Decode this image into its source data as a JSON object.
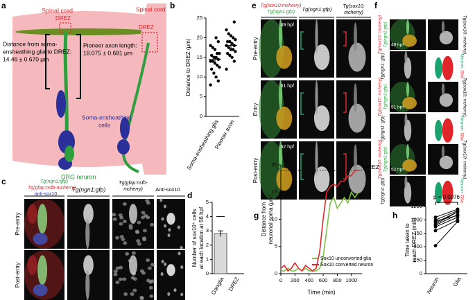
{
  "panels": {
    "a": {
      "label": "a",
      "spinal_cord": "Spinal cord",
      "drez": "DREZ",
      "distance_label": [
        "Distance from soma-",
        "ensheathing glia to DREZ:"
      ],
      "distance_value": "14.46 ± 0.670 μm",
      "axon_label": "Pioneer axon",
      "axon_label_2": "length:",
      "axon_value": "18.075 ± 0.681 μm",
      "soma_cells": [
        "Soma-ensheathing",
        "cells"
      ],
      "spinal_cord_2": "Spinal cord",
      "drez_2": "DREZ",
      "drg": "DRG neuron"
    },
    "c": {
      "label": "c",
      "merge_green": "Tg(ngn1:gfp)",
      "merge_red": "Tg(gfap:nsfb-mcherry)",
      "merge_blue": "anti-sox10",
      "col2": "Tg(ngn1:gfp)",
      "col3": [
        "Tg(gfap:nsfb-",
        "mcherry)"
      ],
      "col4": "Anti-sox10",
      "rows": [
        "Pre-entry",
        "Post-entry"
      ]
    },
    "e": {
      "label": "e",
      "merge_red": "Tg(sox10:mcherry)",
      "merge_green": "Tg(ngn1:gfp)",
      "col2": "Tg(ngn1:gfp)",
      "col3": [
        "Tg(sox10:",
        "mcherry)"
      ],
      "rows": [
        "Pre-entry",
        "Entry",
        "Post-entry"
      ],
      "times": [
        "49 hpf",
        "51 hpf",
        "52 hpf"
      ]
    },
    "f": {
      "label": "f",
      "merge_red": "Tg(sox10: mcherry)",
      "merge_green": "Tg(ngn1:gfp)",
      "sox_label": "Tg(sox10: mcherry)",
      "ngn_label": "Tg(ngn1: gfp)",
      "neuron": "Neuron",
      "glia": "Glia",
      "times": [
        "49 hpf",
        "51 hpf",
        "52 hpf"
      ]
    }
  },
  "chart_data": [
    {
      "type": "dot",
      "label": "b",
      "ylabel": "Distance to DREZ (μm)",
      "categories": [
        "Soma-ensheathing glia",
        "Pioneer axon"
      ],
      "groups": [
        [
          8,
          9,
          10,
          11,
          12,
          12.5,
          13,
          13.5,
          14,
          14,
          14.5,
          15,
          15,
          15.5,
          16,
          16,
          17,
          17.5,
          18,
          19,
          20
        ],
        [
          12,
          14,
          15,
          15.5,
          16,
          16.5,
          17,
          17,
          17.5,
          18,
          18,
          18.5,
          19,
          19,
          19.5,
          20,
          20.5,
          21,
          22,
          24
        ]
      ],
      "means": [
        14.46,
        18.075
      ],
      "errors": [
        0.67,
        0.681
      ],
      "color": "#000000",
      "ylim": [
        0,
        25
      ],
      "yticks": [
        0,
        5,
        10,
        15,
        20,
        25
      ]
    },
    {
      "type": "bar",
      "label": "d",
      "ylabel": [
        "Number of sox10⁺ cells",
        "at each location at 56 hpf"
      ],
      "categories": [
        "Ganglia",
        "DREZ"
      ],
      "values": [
        2.8,
        0
      ],
      "errors": [
        0.2,
        0
      ],
      "max": 4,
      "color": "#d9d9d9",
      "ylim": [
        0,
        5
      ],
      "yticks": [
        0,
        1,
        2,
        3,
        4,
        5
      ]
    },
    {
      "type": "line",
      "label": "g",
      "ylabel": [
        "Distance from",
        "neuronal soma (μm)"
      ],
      "xlabel": "Time (min)",
      "x": [
        0,
        50,
        100,
        150,
        200,
        250,
        300,
        350,
        400,
        450,
        500,
        550,
        600,
        650,
        700,
        750,
        800,
        850,
        900,
        950,
        1000,
        1050,
        1100
      ],
      "series": [
        {
          "name": "Sox10 unconverted glia",
          "color": "#7ac143",
          "values": [
            0.5,
            0.5,
            1,
            0.5,
            0.5,
            1,
            0.5,
            1,
            0.5,
            0.5,
            0.5,
            1,
            3,
            8,
            13,
            14,
            12,
            13,
            14,
            13,
            15,
            14,
            15
          ]
        },
        {
          "name": "Sox10 converted neuron",
          "color": "#e0262b",
          "values": [
            1,
            1.5,
            0.5,
            1,
            2,
            1,
            0.5,
            1.5,
            1,
            0.5,
            1,
            4,
            10,
            15,
            16,
            16.5,
            16,
            17,
            17,
            18,
            18,
            19,
            19
          ]
        }
      ],
      "reference": {
        "value": 19,
        "label": "DREZ"
      },
      "xlim": [
        0,
        1150
      ],
      "xticks": [
        0,
        200,
        400,
        600,
        800,
        1000
      ],
      "ylim": [
        0,
        20
      ],
      "yticks": [
        0,
        5,
        10,
        15,
        20
      ]
    },
    {
      "type": "paired",
      "label": "h",
      "ylabel": [
        "Time taken to",
        "reach DREZ (min)"
      ],
      "annotation": "p = 0.0076",
      "categories": [
        "Neuron",
        "Glia"
      ],
      "groups": [
        [
          520,
          800,
          870,
          900,
          920,
          950,
          980,
          1000,
          1050
        ],
        [
          970,
          1000,
          1050,
          1100,
          1150,
          1150,
          1080,
          1170,
          1200
        ]
      ],
      "color": "#000000",
      "ylim": [
        0,
        1250
      ],
      "yticks": [
        0,
        250,
        500,
        750,
        1000,
        1250
      ]
    }
  ]
}
